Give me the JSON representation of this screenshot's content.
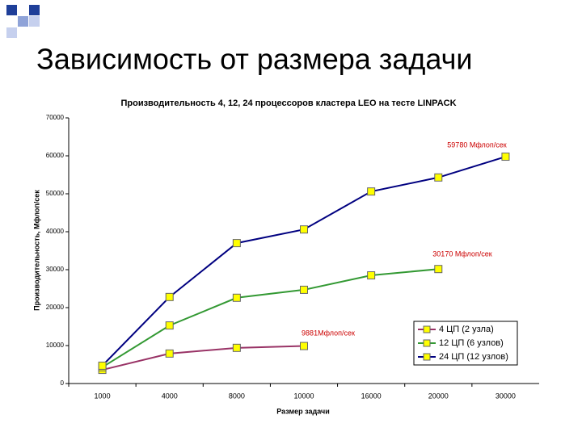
{
  "slide_title": "Зависимость от размера задачи",
  "chart_data": {
    "type": "line",
    "title": "Производительность 4, 12, 24 процессоров кластера LEO на тесте LINPACK",
    "x_label": "Размер задачи",
    "y_label": "Производительность, Мфлоп/сек",
    "categories": [
      "1000",
      "4000",
      "8000",
      "10000",
      "16000",
      "20000",
      "30000"
    ],
    "series": [
      {
        "name": "4 ЦП (2 узла)",
        "color": "#993366",
        "values": [
          3600,
          7900,
          9400,
          9881,
          null,
          null,
          null
        ]
      },
      {
        "name": "12 ЦП (6 узлов)",
        "color": "#339933",
        "values": [
          4300,
          15300,
          22600,
          24700,
          28500,
          30170,
          null
        ]
      },
      {
        "name": "24 ЦП (12 узлов)",
        "color": "#000080",
        "values": [
          4700,
          22800,
          37000,
          40600,
          50600,
          54300,
          59780
        ]
      }
    ],
    "annotations": [
      "59780 Мфлоп/сек",
      "30170 Мфлоп/сек",
      "9881Мфлоп/сек"
    ],
    "marker_color": "#ffff00",
    "ylim": [
      0,
      70000
    ],
    "yticks": [
      0,
      10000,
      20000,
      30000,
      40000,
      50000,
      60000,
      70000
    ],
    "grid": false,
    "legend": "lower right"
  }
}
